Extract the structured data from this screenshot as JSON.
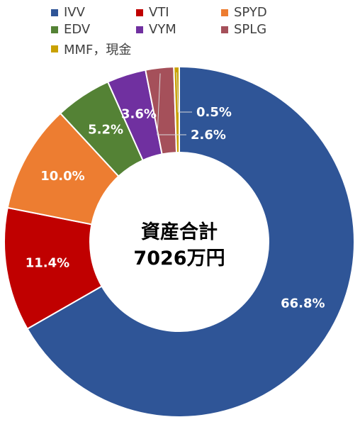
{
  "chart_data": {
    "type": "pie",
    "variant": "donut",
    "center_label": [
      "資産合計",
      "7026万円"
    ],
    "legend_position": "top",
    "slices": [
      {
        "name": "IVV",
        "value": 66.8,
        "label": "66.8%",
        "color": "#2F5597"
      },
      {
        "name": "VTI",
        "value": 11.4,
        "label": "11.4%",
        "color": "#C00000"
      },
      {
        "name": "SPYD",
        "value": 10.0,
        "label": "10.0%",
        "color": "#ED7D31"
      },
      {
        "name": "EDV",
        "value": 5.2,
        "label": "5.2%",
        "color": "#548235"
      },
      {
        "name": "VYM",
        "value": 3.6,
        "label": "3.6%",
        "color": "#7030A0"
      },
      {
        "name": "SPLG",
        "value": 2.6,
        "label": "2.6%",
        "color": "#A5505A"
      },
      {
        "name": "MMF，現金",
        "value": 0.5,
        "label": "0.5%",
        "color": "#C9A100"
      }
    ]
  }
}
